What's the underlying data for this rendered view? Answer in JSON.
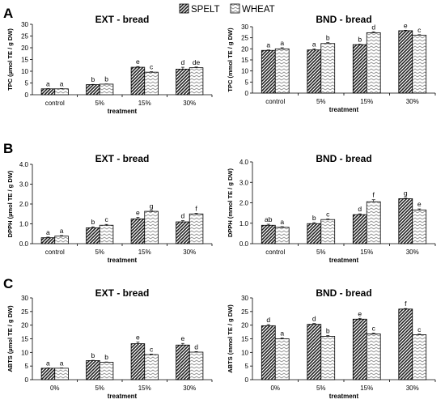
{
  "legend": {
    "placement": "top-center",
    "items": [
      {
        "name": "SPELT",
        "pattern": "dense-diagonal-hatch"
      },
      {
        "name": "WHEAT",
        "pattern": "zigzag-light"
      }
    ]
  },
  "colors": {
    "axis": "#000000",
    "bar_stroke": "#000000",
    "spelt_fill": "#3a3a3a",
    "wheat_fill": "#ffffff",
    "wheat_pattern": "#8a8a8a"
  },
  "chart_data": [
    {
      "type": "bar",
      "panel_letter": "A",
      "title": "EXT - bread",
      "xlabel": "treatment",
      "ylabel": "TPC (µmol TE / g DW)",
      "categories": [
        "control",
        "5%",
        "15%",
        "30%"
      ],
      "ylim": [
        0,
        30
      ],
      "yticks": [
        "0",
        "5",
        "10",
        "15",
        "20",
        "25",
        "30"
      ],
      "series": [
        {
          "name": "SPELT",
          "values": [
            2.5,
            4.3,
            11.7,
            10.9
          ],
          "errors": [
            0.1,
            0.1,
            0.3,
            0.8
          ],
          "letters": [
            "a",
            "b",
            "e",
            "d"
          ]
        },
        {
          "name": "WHEAT",
          "values": [
            2.5,
            4.5,
            9.6,
            11.5
          ],
          "errors": [
            0.1,
            0.1,
            0.2,
            0.3
          ],
          "letters": [
            "a",
            "b",
            "c",
            "de"
          ]
        }
      ]
    },
    {
      "type": "bar",
      "panel_letter": "",
      "title": "BND - bread",
      "xlabel": "treatment",
      "ylabel": "TPC (mmol TE / g DW)",
      "categories": [
        "control",
        "5%",
        "15%",
        "30%"
      ],
      "ylim": [
        0,
        30
      ],
      "yticks": [
        "0",
        "5",
        "10",
        "15",
        "20",
        "25",
        "30"
      ],
      "series": [
        {
          "name": "SPELT",
          "values": [
            19.3,
            19.5,
            21.9,
            28.2
          ],
          "errors": [
            0.2,
            0.5,
            0.2,
            0.2
          ],
          "letters": [
            "a",
            "a",
            "b",
            "e"
          ]
        },
        {
          "name": "WHEAT",
          "values": [
            20.0,
            22.4,
            27.3,
            26.2
          ],
          "errors": [
            0.5,
            0.4,
            0.4,
            0.2
          ],
          "letters": [
            "a",
            "b",
            "d",
            "c"
          ]
        }
      ]
    },
    {
      "type": "bar",
      "panel_letter": "B",
      "title": "EXT - bread",
      "xlabel": "treatment",
      "ylabel": "DPPH (µmol TE / g DW)",
      "categories": [
        "control",
        "5%",
        "15%",
        "30%"
      ],
      "ylim": [
        0,
        4
      ],
      "yticks": [
        "0.0",
        "1.0",
        "2.0",
        "3.0",
        "4.0"
      ],
      "series": [
        {
          "name": "SPELT",
          "values": [
            0.3,
            0.8,
            1.25,
            1.1
          ],
          "errors": [
            0.03,
            0.05,
            0.08,
            0.06
          ],
          "letters": [
            "a",
            "b",
            "e",
            "d"
          ]
        },
        {
          "name": "WHEAT",
          "values": [
            0.38,
            0.93,
            1.63,
            1.5
          ],
          "errors": [
            0.03,
            0.04,
            0.03,
            0.03
          ],
          "letters": [
            "a",
            "c",
            "g",
            "f"
          ]
        }
      ]
    },
    {
      "type": "bar",
      "panel_letter": "",
      "title": "BND - bread",
      "xlabel": "treatment",
      "ylabel": "DPPH (mmol TE / g DW)",
      "categories": [
        "control",
        "5%",
        "15%",
        "30%"
      ],
      "ylim": [
        0,
        4
      ],
      "yticks": [
        "0.0",
        "1.0",
        "2.0",
        "3.0",
        "4.0"
      ],
      "series": [
        {
          "name": "SPELT",
          "values": [
            0.9,
            0.98,
            1.42,
            2.2
          ],
          "errors": [
            0.05,
            0.05,
            0.04,
            0.03
          ],
          "letters": [
            "ab",
            "b",
            "d",
            "g"
          ]
        },
        {
          "name": "WHEAT",
          "values": [
            0.8,
            1.18,
            2.05,
            1.65
          ],
          "errors": [
            0.03,
            0.03,
            0.1,
            0.05
          ],
          "letters": [
            "a",
            "c",
            "f",
            "e"
          ]
        }
      ]
    },
    {
      "type": "bar",
      "panel_letter": "C",
      "title": "EXT - bread",
      "xlabel": "treatment",
      "ylabel": "ABTS (µmol TE / g DW)",
      "categories": [
        "0%",
        "5%",
        "15%",
        "30%"
      ],
      "ylim": [
        0,
        30
      ],
      "yticks": [
        "0",
        "5",
        "10",
        "15",
        "20",
        "25",
        "30"
      ],
      "series": [
        {
          "name": "SPELT",
          "values": [
            4.2,
            7.0,
            13.2,
            12.7
          ],
          "errors": [
            0.1,
            0.1,
            0.6,
            0.6
          ],
          "letters": [
            "a",
            "b",
            "e",
            "e"
          ]
        },
        {
          "name": "WHEAT",
          "values": [
            4.2,
            6.4,
            9.2,
            10.1
          ],
          "errors": [
            0.1,
            0.1,
            0.2,
            0.2
          ],
          "letters": [
            "a",
            "b",
            "c",
            "d"
          ]
        }
      ]
    },
    {
      "type": "bar",
      "panel_letter": "",
      "title": "BND - bread",
      "xlabel": "treatment",
      "ylabel": "ABTS (mmol TE / g DW)",
      "categories": [
        "0%",
        "5%",
        "15%",
        "30%"
      ],
      "ylim": [
        0,
        30
      ],
      "yticks": [
        "0",
        "5",
        "10",
        "15",
        "20",
        "25",
        "30"
      ],
      "series": [
        {
          "name": "SPELT",
          "values": [
            19.8,
            20.3,
            22.2,
            25.9
          ],
          "errors": [
            0.4,
            0.3,
            0.3,
            0.2
          ],
          "letters": [
            "d",
            "d",
            "e",
            "f"
          ]
        },
        {
          "name": "WHEAT",
          "values": [
            15.0,
            15.9,
            16.8,
            16.5
          ],
          "errors": [
            0.3,
            0.3,
            0.3,
            0.2
          ],
          "letters": [
            "a",
            "b",
            "c",
            "c"
          ]
        }
      ]
    }
  ]
}
